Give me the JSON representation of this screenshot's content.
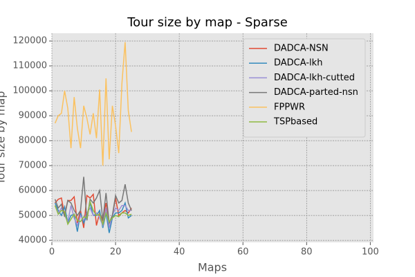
{
  "chart_data": {
    "type": "line",
    "title": "Tour size by map - Sparse",
    "xlabel": "Maps",
    "ylabel": "Tour size by map",
    "x": [
      1,
      2,
      3,
      4,
      5,
      6,
      7,
      8,
      9,
      10,
      11,
      12,
      13,
      14,
      15,
      16,
      17,
      18,
      19,
      20,
      21,
      22,
      23,
      24,
      25
    ],
    "series": [
      {
        "name": "DADCA-NSN",
        "color": "#E24A33",
        "values": [
          55000,
          56500,
          57000,
          50000,
          56000,
          56000,
          57500,
          47000,
          52000,
          45000,
          58000,
          57000,
          58500,
          46000,
          51000,
          48000,
          55000,
          47000,
          50000,
          57000,
          50000,
          51000,
          52000,
          51000,
          53000
        ]
      },
      {
        "name": "DADCA-lkh",
        "color": "#348ABD",
        "values": [
          55000,
          52000,
          50000,
          53500,
          47000,
          50000,
          50500,
          43500,
          51000,
          47000,
          50000,
          55000,
          50000,
          50000,
          52000,
          45000,
          51000,
          43000,
          49000,
          51000,
          51000,
          52000,
          55000,
          49000,
          50000
        ]
      },
      {
        "name": "DADCA-lkh-cutted",
        "color": "#988ED5",
        "values": [
          54000,
          51000,
          53000,
          50000,
          47500,
          54000,
          49000,
          46000,
          50000,
          48000,
          51000,
          53000,
          50000,
          51000,
          49000,
          46000,
          53000,
          45000,
          50000,
          53000,
          52000,
          54000,
          54000,
          52000,
          52000
        ]
      },
      {
        "name": "DADCA-parted-nsn",
        "color": "#777777",
        "values": [
          56500,
          53000,
          54500,
          49500,
          56000,
          55000,
          52000,
          50000,
          52000,
          65500,
          48000,
          56500,
          55000,
          57000,
          60000,
          48000,
          59000,
          47000,
          50000,
          58000,
          55000,
          56000,
          62500,
          55000,
          52000
        ]
      },
      {
        "name": "FPPWR",
        "color": "#FBC15E",
        "values": [
          87000,
          90000,
          91000,
          100000,
          93000,
          77000,
          97500,
          85000,
          77000,
          94000,
          89000,
          82500,
          91000,
          81000,
          100500,
          70000,
          105000,
          72500,
          94000,
          86000,
          75000,
          103000,
          119500,
          92000,
          83500
        ]
      },
      {
        "name": "TSPbased",
        "color": "#8EBA42",
        "values": [
          54000,
          50500,
          52000,
          51500,
          46500,
          48500,
          50500,
          48000,
          47500,
          49500,
          49000,
          55500,
          52000,
          50000,
          50500,
          46500,
          51000,
          47500,
          49000,
          50000,
          49500,
          51000,
          51000,
          50000,
          50500
        ]
      }
    ],
    "xlim": [
      0,
      101
    ],
    "xticks": [
      0,
      20,
      40,
      60,
      80,
      100
    ],
    "ylim": [
      39200,
      123100
    ],
    "yticks": [
      40000,
      50000,
      60000,
      70000,
      80000,
      90000,
      100000,
      110000,
      120000
    ],
    "grid": true,
    "legend": "upper right"
  }
}
